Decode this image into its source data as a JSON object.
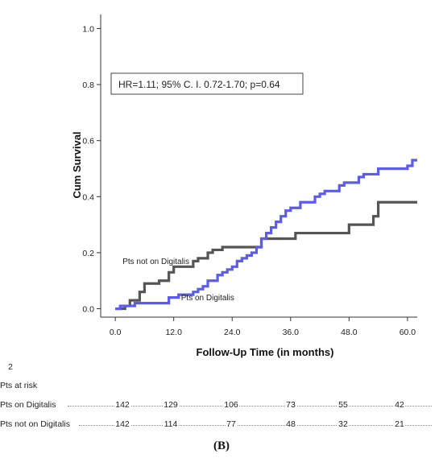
{
  "chart_data": {
    "type": "line",
    "step": true,
    "title": "",
    "xlabel": "Follow-Up Time (in months)",
    "ylabel": "Cum Survival",
    "xlim": [
      -3,
      62
    ],
    "ylim": [
      -0.03,
      1.05
    ],
    "x_ticks": [
      0,
      12,
      24,
      36,
      48,
      60
    ],
    "x_tick_labels": [
      "0.0",
      "12.0",
      "24.0",
      "36.0",
      "48.0",
      "60.0"
    ],
    "y_ticks": [
      0,
      0.2,
      0.4,
      0.6,
      0.8,
      1.0
    ],
    "y_tick_labels": [
      "0.0",
      "0.2",
      "0.4",
      "0.6",
      "0.8",
      "1.0"
    ],
    "annotation_box": "HR=1.11; 95% C. I. 0.72-1.70; p=0.64",
    "series": [
      {
        "name": "Pts not on Digitalis",
        "color": "#555555",
        "x": [
          0,
          2,
          3,
          5,
          6,
          7,
          9,
          11,
          12,
          14,
          16,
          17,
          19,
          20,
          22,
          25,
          26,
          30,
          35,
          37,
          48,
          53,
          54,
          62
        ],
        "y": [
          0,
          0.01,
          0.03,
          0.06,
          0.09,
          0.09,
          0.1,
          0.13,
          0.15,
          0.15,
          0.17,
          0.18,
          0.2,
          0.21,
          0.22,
          0.22,
          0.22,
          0.25,
          0.25,
          0.27,
          0.3,
          0.33,
          0.38,
          0.38
        ]
      },
      {
        "name": "Pts on Digitalis",
        "color": "#5b5bf0",
        "x": [
          0,
          1,
          4,
          7,
          10,
          11,
          13,
          16,
          17,
          18,
          19,
          21,
          22,
          23,
          24,
          25,
          26,
          27,
          28,
          29,
          30,
          31,
          32,
          33,
          34,
          35,
          36,
          38,
          40,
          41,
          42,
          43,
          45,
          46,
          47,
          49,
          50,
          51,
          53,
          54,
          57,
          60,
          61,
          62
        ],
        "y": [
          0,
          0.01,
          0.02,
          0.02,
          0.02,
          0.04,
          0.05,
          0.06,
          0.07,
          0.08,
          0.1,
          0.12,
          0.13,
          0.14,
          0.15,
          0.17,
          0.18,
          0.19,
          0.2,
          0.22,
          0.25,
          0.27,
          0.29,
          0.31,
          0.33,
          0.35,
          0.36,
          0.38,
          0.38,
          0.4,
          0.41,
          0.42,
          0.42,
          0.44,
          0.45,
          0.45,
          0.47,
          0.48,
          0.48,
          0.5,
          0.5,
          0.51,
          0.53,
          0.53
        ]
      }
    ],
    "series_labels": [
      {
        "text": "Pts not on Digitalis",
        "x": 1.5,
        "y": 0.16
      },
      {
        "text": "Pts on Digitalis",
        "x": 13.5,
        "y": 0.03
      }
    ]
  },
  "risk_table": {
    "panel_number": "2",
    "header": "Pts at risk",
    "rows": [
      {
        "label": "Pts on Digitalis",
        "values": [
          "142",
          "129",
          "106",
          "73",
          "55",
          "42"
        ]
      },
      {
        "label": "Pts not on Digitalis",
        "values": [
          "142",
          "114",
          "77",
          "48",
          "32",
          "21"
        ]
      }
    ]
  },
  "panel_label": "(B)"
}
